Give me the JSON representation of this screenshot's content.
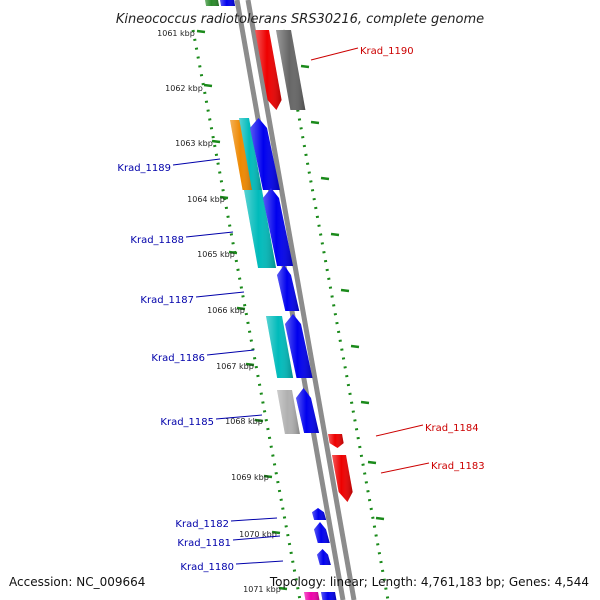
{
  "title": "Kineococcus radiotolerans SRS30216, complete genome",
  "footer": {
    "accession": "Accession: NC_009664",
    "summary": "Topology: linear; Length: 4,761,183 bp; Genes: 4,544"
  },
  "colors": {
    "backbone": "#8c8c8c",
    "forward_label": "#0000aa",
    "reverse_label": "#cc0000",
    "tick_marks": "#1a8a1a"
  },
  "kbp_labels": [
    "1061 kbp",
    "1062 kbp",
    "1063 kbp",
    "1064 kbp",
    "1065 kbp",
    "1066 kbp",
    "1067 kbp",
    "1068 kbp",
    "1069 kbp",
    "1070 kbp",
    "1071 kbp"
  ],
  "gene_labels": [
    {
      "name": "Krad_1190",
      "strand": "reverse"
    },
    {
      "name": "Krad_1189",
      "strand": "forward"
    },
    {
      "name": "Krad_1188",
      "strand": "forward"
    },
    {
      "name": "Krad_1187",
      "strand": "forward"
    },
    {
      "name": "Krad_1186",
      "strand": "forward"
    },
    {
      "name": "Krad_1185",
      "strand": "forward"
    },
    {
      "name": "Krad_1184",
      "strand": "reverse"
    },
    {
      "name": "Krad_1183",
      "strand": "reverse"
    },
    {
      "name": "Krad_1182",
      "strand": "forward"
    },
    {
      "name": "Krad_1181",
      "strand": "forward"
    },
    {
      "name": "Krad_1180",
      "strand": "forward"
    }
  ],
  "features": [
    {
      "color": "#2a8a2a",
      "shape": "rect"
    },
    {
      "color": "#0000ee",
      "shape": "rect"
    },
    {
      "color": "#ee0000",
      "shape": "arrow-down"
    },
    {
      "color": "#666666",
      "shape": "rect"
    },
    {
      "color": "#ee8800",
      "shape": "rect"
    },
    {
      "color": "#00bbbb",
      "shape": "rect"
    },
    {
      "color": "#0000ee",
      "shape": "arrow-up"
    },
    {
      "color": "#00bbbb",
      "shape": "rect"
    },
    {
      "color": "#0000ee",
      "shape": "arrow-up"
    },
    {
      "color": "#0000ee",
      "shape": "arrow-up"
    },
    {
      "color": "#00bbbb",
      "shape": "rect"
    },
    {
      "color": "#0000ee",
      "shape": "arrow-up"
    },
    {
      "color": "#b0b0b0",
      "shape": "rect"
    },
    {
      "color": "#0000ee",
      "shape": "arrow-up"
    },
    {
      "color": "#ee0000",
      "shape": "arrow-down"
    },
    {
      "color": "#ee0000",
      "shape": "arrow-down"
    },
    {
      "color": "#0000ee",
      "shape": "arrow-up"
    },
    {
      "color": "#0000ee",
      "shape": "arrow-up"
    },
    {
      "color": "#0000ee",
      "shape": "arrow-up"
    },
    {
      "color": "#ee00aa",
      "shape": "rect"
    },
    {
      "color": "#0000ee",
      "shape": "rect"
    }
  ]
}
